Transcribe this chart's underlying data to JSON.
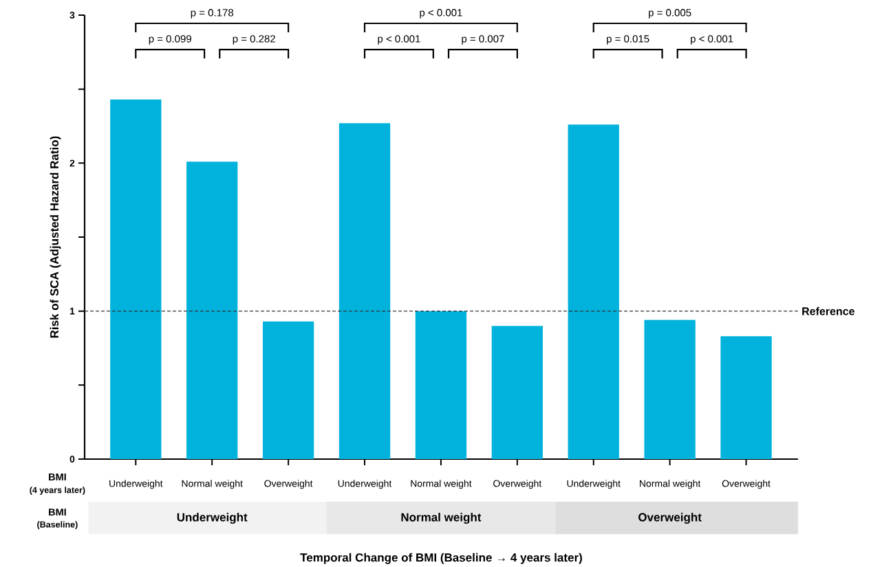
{
  "chart_data": {
    "type": "bar",
    "ylabel": "Risk of SCA (Adjusted Hazard Ratio)",
    "categories": [
      "Underweight",
      "Normal weight",
      "Overweight",
      "Underweight",
      "Normal weight",
      "Overweight",
      "Underweight",
      "Normal weight",
      "Overweight"
    ],
    "values": [
      2.43,
      2.01,
      0.93,
      2.27,
      1.0,
      0.9,
      2.26,
      0.94,
      0.83
    ],
    "color": "#00b2dc",
    "ylim": [
      0,
      3
    ],
    "yticks": [
      0,
      {
        "value": 0.5,
        "label": null
      },
      1,
      {
        "value": 1.5,
        "label": null
      },
      2,
      {
        "value": 2.5,
        "label": null
      },
      3
    ],
    "ref_lines": [
      {
        "axis": "y",
        "value": 1,
        "label": "Reference",
        "line_style": "dashed",
        "color": "#333333"
      }
    ],
    "annotations": [
      "p = 0.178",
      "p = 0.099",
      "p = 0.282",
      "p < 0.001",
      "p < 0.001",
      "p = 0.007",
      "p = 0.005",
      "p = 0.015",
      "p < 0.001",
      "BMI",
      "(4 years later)",
      "BMI",
      "(Baseline)",
      "Underweight",
      "Normal weight",
      "Overweight",
      "Temporal Change of BMI (Baseline → 4 years later)"
    ]
  }
}
